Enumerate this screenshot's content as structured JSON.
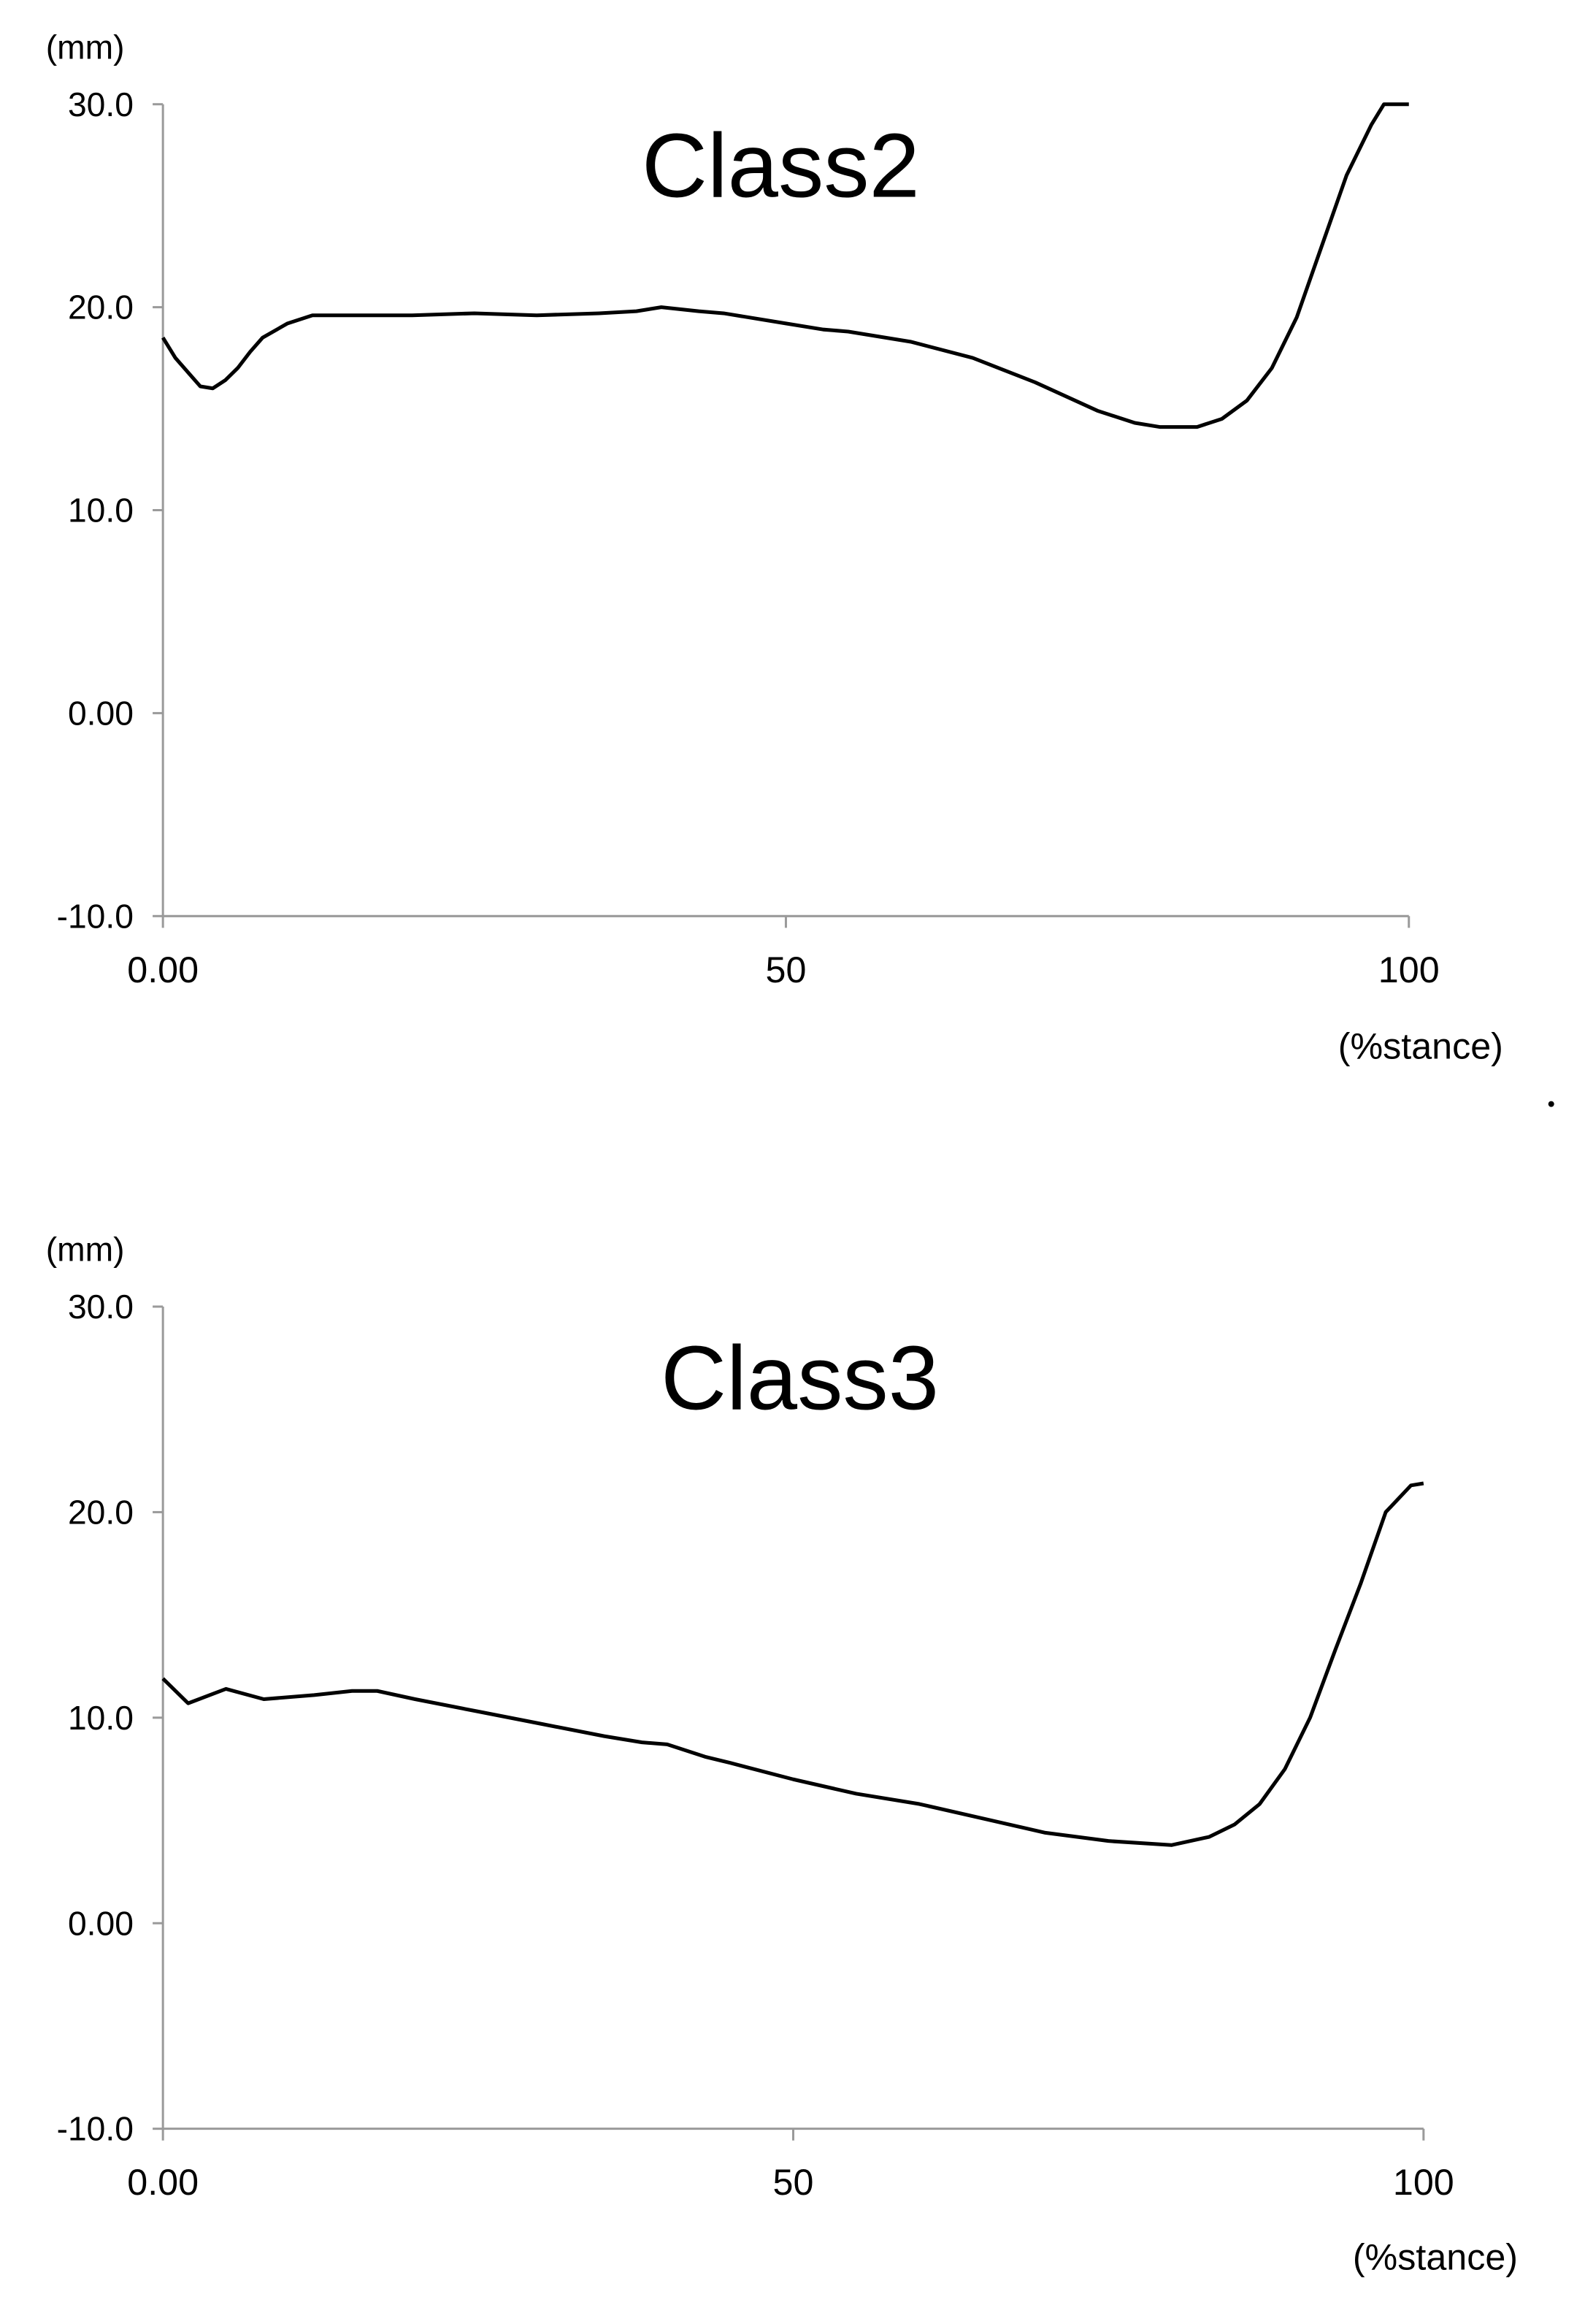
{
  "chart_data": [
    {
      "type": "line",
      "title": "Class2",
      "y_label": "(mm)",
      "x_label": "(%stance)",
      "x": [
        0,
        1,
        2,
        3,
        4,
        5,
        6,
        7,
        8,
        10,
        12,
        15,
        20,
        25,
        30,
        35,
        38,
        40,
        43,
        45,
        50,
        53,
        55,
        60,
        65,
        70,
        75,
        78,
        80,
        83,
        85,
        87,
        89,
        91,
        93,
        95,
        97,
        98,
        100
      ],
      "values": [
        18.5,
        17.5,
        16.8,
        16.1,
        16.0,
        16.4,
        17.0,
        17.8,
        18.5,
        19.2,
        19.6,
        19.6,
        19.6,
        19.7,
        19.6,
        19.7,
        19.8,
        20.0,
        19.8,
        19.7,
        19.2,
        18.9,
        18.8,
        18.3,
        17.5,
        16.3,
        14.9,
        14.3,
        14.1,
        14.1,
        14.5,
        15.4,
        17.0,
        19.5,
        23.0,
        26.5,
        29.0,
        30.0,
        30.0
      ],
      "color": "#000000",
      "xlim": [
        0,
        100
      ],
      "xticks": [
        {
          "value": 0,
          "label": "0.00"
        },
        50,
        100
      ],
      "ylim": [
        -10,
        30
      ],
      "yticks": [
        {
          "value": -10,
          "label": "-10.0"
        },
        {
          "value": 0,
          "label": "0.00"
        },
        {
          "value": 10,
          "label": "10.0"
        },
        {
          "value": 20,
          "label": "20.0"
        },
        {
          "value": 30,
          "label": "30.0"
        }
      ],
      "grid": false
    },
    {
      "type": "line",
      "title": "Class3",
      "y_label": "(mm)",
      "x_label": "(%stance)",
      "x": [
        0,
        2,
        5,
        8,
        12,
        15,
        17,
        20,
        25,
        30,
        35,
        38,
        40,
        43,
        45,
        50,
        55,
        60,
        65,
        70,
        75,
        80,
        83,
        85,
        87,
        89,
        91,
        93,
        95,
        97,
        99,
        100
      ],
      "values": [
        11.9,
        10.7,
        11.4,
        10.9,
        11.1,
        11.3,
        11.3,
        10.9,
        10.3,
        9.7,
        9.1,
        8.8,
        8.7,
        8.1,
        7.8,
        7.0,
        6.3,
        5.8,
        5.1,
        4.4,
        4.0,
        3.8,
        4.2,
        4.8,
        5.8,
        7.5,
        10.0,
        13.3,
        16.5,
        20.0,
        21.3,
        21.4
      ],
      "color": "#000000",
      "xlim": [
        0,
        100
      ],
      "xticks": [
        {
          "value": 0,
          "label": "0.00"
        },
        50,
        100
      ],
      "ylim": [
        -10,
        30
      ],
      "yticks": [
        {
          "value": -10,
          "label": "-10.0"
        },
        {
          "value": 0,
          "label": "0.00"
        },
        {
          "value": 10,
          "label": "10.0"
        },
        {
          "value": 20,
          "label": "20.0"
        },
        {
          "value": 30,
          "label": "30.0"
        }
      ],
      "grid": false
    }
  ]
}
